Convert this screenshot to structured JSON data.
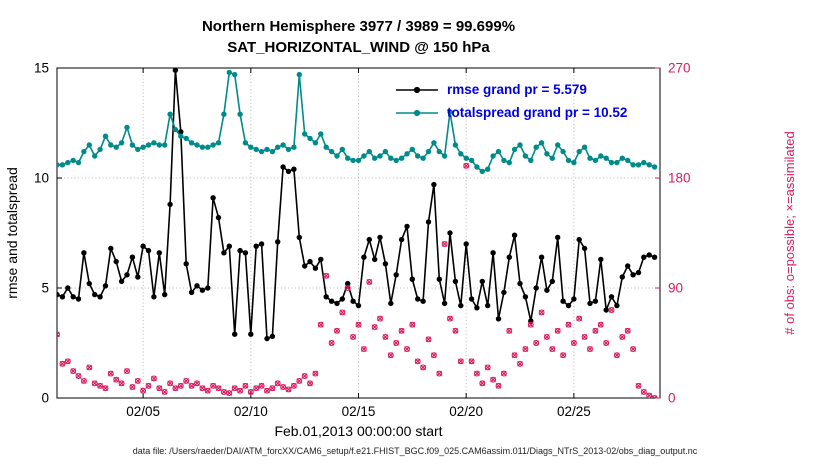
{
  "title": {
    "line1": "Northern Hemisphere 3977 / 3989 = 99.699%",
    "line2": "SAT_HORIZONTAL_WIND @ 150 hPa"
  },
  "legend": {
    "items": [
      {
        "label": "rmse grand pr = 5.579",
        "color": "#000000"
      },
      {
        "label": "totalspread grand pr = 10.52",
        "color": "#008b8b"
      }
    ],
    "text_color": "#0000e0"
  },
  "footer": {
    "caption": "data file: /Users/raeder/DAI/ATM_forcXX/CAM6_setup/f.e21.FHIST_BGC.f09_025.CAM6assim.011/Diags_NTrS_2013-02/obs_diag_output.nc"
  },
  "chart_data": {
    "type": "line",
    "x_start": 1.0,
    "x_step": 0.25,
    "n_points": 112,
    "x_axis": {
      "label": "Feb.01,2013 00:00:00 start",
      "range": [
        1,
        29
      ],
      "ticks": [
        5,
        10,
        15,
        20,
        25
      ],
      "tick_labels": [
        "02/05",
        "02/10",
        "02/15",
        "02/20",
        "02/25"
      ]
    },
    "y_left": {
      "label": "rmse and totalspread",
      "range": [
        0,
        15
      ],
      "ticks": [
        0,
        5,
        10,
        15
      ],
      "color": "#000000"
    },
    "y_right": {
      "label": "# of obs: o=possible; ×=assimilated",
      "range": [
        0,
        270
      ],
      "ticks": [
        0,
        90,
        180,
        270
      ],
      "color": "#d81b60"
    },
    "grid": true,
    "series": [
      {
        "name": "rmse grand pr = 5.579",
        "kind": "line",
        "axis": "left",
        "color": "#000000",
        "values": [
          4.7,
          4.6,
          5.0,
          4.6,
          4.5,
          6.6,
          5.2,
          4.7,
          4.6,
          5.1,
          6.8,
          6.2,
          5.3,
          5.6,
          6.4,
          5.5,
          6.9,
          6.7,
          4.6,
          6.6,
          4.7,
          8.8,
          14.9,
          12.1,
          6.1,
          4.8,
          5.1,
          4.9,
          5.0,
          9.1,
          8.2,
          6.6,
          6.9,
          2.9,
          6.7,
          6.6,
          2.9,
          6.9,
          7.0,
          2.7,
          2.8,
          7.1,
          10.5,
          10.3,
          10.4,
          7.3,
          6.0,
          6.2,
          5.9,
          6.3,
          4.6,
          4.4,
          4.3,
          4.5,
          5.2,
          4.4,
          4.2,
          6.4,
          7.2,
          6.3,
          7.3,
          6.1,
          4.3,
          5.6,
          7.2,
          7.8,
          5.4,
          4.5,
          4.4,
          8.0,
          9.7,
          5.4,
          4.3,
          7.5,
          5.3,
          4.2,
          7.0,
          4.5,
          4.1,
          5.3,
          4.2,
          6.6,
          3.6,
          4.8,
          6.4,
          7.4,
          5.2,
          4.6,
          3.5,
          5.0,
          6.4,
          4.9,
          5.3,
          7.3,
          4.4,
          4.2,
          4.5,
          7.2,
          6.8,
          4.3,
          4.4,
          6.3,
          4.0,
          4.6,
          4.2,
          5.5,
          6.0,
          5.6,
          5.7,
          6.4,
          6.5,
          6.4
        ]
      },
      {
        "name": "totalspread grand pr = 10.52",
        "kind": "line",
        "axis": "left",
        "color": "#008b8b",
        "values": [
          10.6,
          10.6,
          10.7,
          10.8,
          10.7,
          11.2,
          11.5,
          11.0,
          11.3,
          11.9,
          11.5,
          11.4,
          11.6,
          12.3,
          11.5,
          11.3,
          11.4,
          11.5,
          11.6,
          11.5,
          11.5,
          12.9,
          12.2,
          11.9,
          11.8,
          11.6,
          11.5,
          11.4,
          11.4,
          11.5,
          11.6,
          12.9,
          14.8,
          14.7,
          12.9,
          11.6,
          11.4,
          11.3,
          11.2,
          11.3,
          11.2,
          11.4,
          11.5,
          11.3,
          11.4,
          14.7,
          12.0,
          11.8,
          11.6,
          12.0,
          11.4,
          11.2,
          11.0,
          11.3,
          10.9,
          10.8,
          10.8,
          11.0,
          11.2,
          10.9,
          11.0,
          11.2,
          10.9,
          10.8,
          10.9,
          11.1,
          11.3,
          11.0,
          10.9,
          11.2,
          11.6,
          11.2,
          11.0,
          13.0,
          11.5,
          11.1,
          10.9,
          10.8,
          10.5,
          10.3,
          10.4,
          11.0,
          11.2,
          10.8,
          10.7,
          11.3,
          11.5,
          11.0,
          10.8,
          11.4,
          11.6,
          11.1,
          10.9,
          11.5,
          11.2,
          10.8,
          10.7,
          11.2,
          11.4,
          10.9,
          10.8,
          11.0,
          10.9,
          10.7,
          10.7,
          10.9,
          10.8,
          10.6,
          10.6,
          10.7,
          10.6,
          10.5
        ]
      },
      {
        "name": "observations possible and assimilated",
        "kind": "scatter",
        "axis": "right",
        "color": "#d81b60",
        "marker": "o-and-x",
        "values": [
          52,
          28,
          30,
          22,
          18,
          14,
          25,
          12,
          10,
          8,
          20,
          15,
          12,
          22,
          9,
          14,
          6,
          10,
          16,
          8,
          5,
          12,
          8,
          10,
          14,
          10,
          12,
          8,
          6,
          10,
          8,
          5,
          4,
          8,
          6,
          10,
          5,
          8,
          10,
          6,
          8,
          12,
          9,
          7,
          10,
          14,
          18,
          12,
          20,
          60,
          100,
          45,
          55,
          70,
          90,
          50,
          60,
          40,
          95,
          58,
          65,
          50,
          35,
          45,
          55,
          40,
          60,
          30,
          25,
          48,
          35,
          20,
          126,
          65,
          55,
          30,
          190,
          30,
          20,
          12,
          25,
          15,
          10,
          20,
          55,
          35,
          28,
          40,
          60,
          45,
          70,
          50,
          40,
          55,
          35,
          60,
          45,
          65,
          50,
          40,
          55,
          60,
          45,
          72,
          35,
          50,
          55,
          40,
          10,
          5,
          2,
          0
        ]
      }
    ]
  }
}
